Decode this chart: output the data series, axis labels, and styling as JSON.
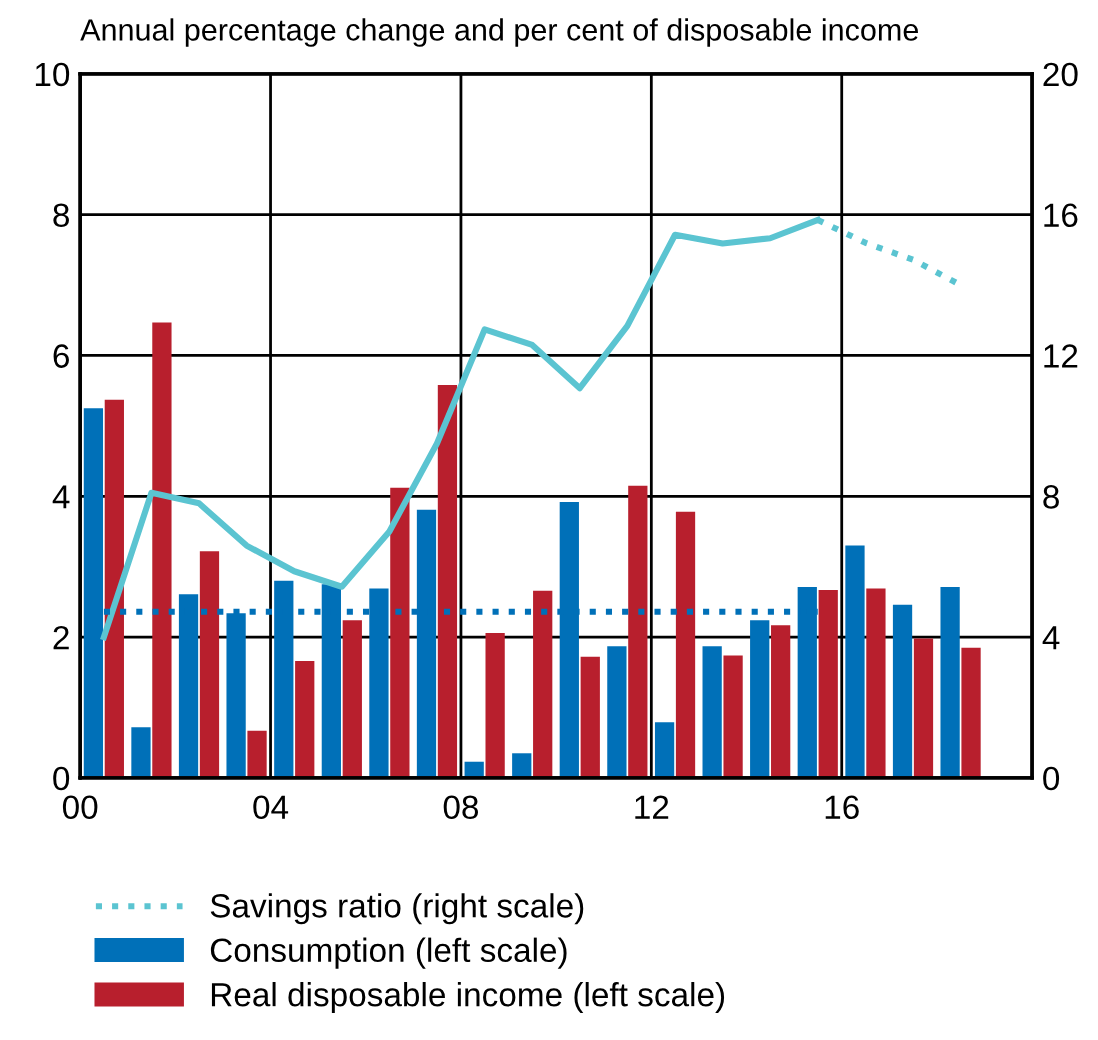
{
  "chart_data": {
    "type": "bar",
    "title": "Annual percentage change and per cent of disposable income",
    "x": [
      "2000-07",
      "2001-07",
      "2002-07",
      "2003-07",
      "2004-07",
      "2005-07",
      "2006-07",
      "2007-07",
      "2008-07",
      "2009-07",
      "2010-07",
      "2011-07",
      "2012-07",
      "2013-07",
      "2014-07",
      "2015-07",
      "2016-07",
      "2017-07",
      "2018-07"
    ],
    "xlim": [
      "2000",
      "2020"
    ],
    "xticks": [
      {
        "value": "2000",
        "label": "00"
      },
      {
        "value": "2004",
        "label": "04"
      },
      {
        "value": "2008",
        "label": "08"
      },
      {
        "value": "2012",
        "label": "12"
      },
      {
        "value": "2016",
        "label": "16"
      },
      {
        "value": "2020",
        "label": null
      }
    ],
    "series": [
      {
        "name": "Savings ratio (right scale)",
        "type": "line",
        "axis": "y2",
        "color": "#5bc4d1",
        "line_style": "solid",
        "values": [
          4.0,
          8.1,
          7.8,
          6.6,
          5.87,
          5.43,
          7.0,
          9.5,
          12.74,
          12.3,
          11.07,
          12.84,
          15.43,
          15.18,
          15.33,
          15.85,
          null,
          null,
          null
        ]
      },
      {
        "type": "line",
        "axis": "y2",
        "color": "#5bc4d1",
        "line_style": "dotted",
        "values": [
          null,
          null,
          null,
          null,
          null,
          null,
          null,
          null,
          null,
          null,
          null,
          null,
          null,
          null,
          null,
          15.85,
          15.2,
          14.72,
          14.0
        ]
      },
      {
        "type": "line",
        "axis": "y2",
        "color": "#0070b8",
        "line_style": "dotted",
        "values": [
          4.72,
          4.72,
          4.72,
          4.72,
          4.72,
          4.72,
          4.72,
          4.72,
          4.72,
          4.72,
          4.72,
          4.72,
          4.72,
          4.72,
          4.72,
          4.72,
          null,
          null,
          null
        ]
      },
      {
        "name": "Consumption (left scale)",
        "color": "#0070b8",
        "values": [
          5.25,
          0.72,
          2.61,
          2.34,
          2.8,
          2.75,
          2.69,
          3.81,
          0.23,
          0.35,
          3.92,
          1.87,
          0.79,
          1.87,
          2.24,
          2.71,
          3.3,
          2.46,
          2.71
        ]
      },
      {
        "name": "Real disposable income (left scale)",
        "color": "#b81f2d",
        "values": [
          5.37,
          6.47,
          3.22,
          0.67,
          1.66,
          2.24,
          4.12,
          5.58,
          2.06,
          2.66,
          1.72,
          4.15,
          3.78,
          1.74,
          2.17,
          2.67,
          2.69,
          1.98,
          1.85
        ]
      }
    ],
    "ylim": [
      0,
      10
    ],
    "yticks": [
      0,
      2,
      4,
      6,
      8,
      10
    ],
    "y2lim": [
      0,
      20
    ],
    "y2ticks": [
      0,
      4,
      8,
      12,
      16,
      20
    ],
    "grid": true,
    "legend": "bottom"
  }
}
